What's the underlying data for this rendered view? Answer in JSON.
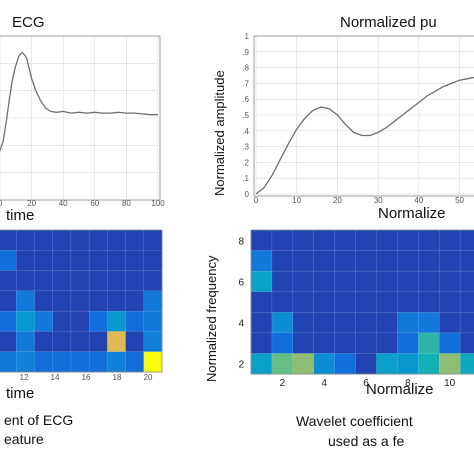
{
  "chart_data": [
    {
      "type": "line",
      "title": "ECG",
      "xlabel": "time",
      "ylabel": "",
      "xlim": [
        0,
        100
      ],
      "x_ticks": [
        "0",
        "20",
        "40",
        "60",
        "80",
        "100"
      ],
      "grid": true,
      "series": [
        {
          "x": [
            -5,
            0,
            2,
            4,
            6,
            8,
            10,
            12,
            14,
            16,
            17,
            18,
            20,
            23,
            26,
            29,
            32,
            36,
            40,
            45,
            50,
            55,
            60,
            65,
            70,
            75,
            80,
            85,
            90,
            95,
            100
          ],
          "y": [
            0.28,
            0.3,
            0.36,
            0.48,
            0.62,
            0.74,
            0.82,
            0.88,
            0.9,
            0.88,
            0.86,
            0.82,
            0.74,
            0.66,
            0.6,
            0.56,
            0.54,
            0.535,
            0.54,
            0.53,
            0.535,
            0.53,
            0.535,
            0.53,
            0.53,
            0.535,
            0.53,
            0.53,
            0.525,
            0.52,
            0.52
          ]
        }
      ]
    },
    {
      "type": "line",
      "title": "Normalized pu",
      "xlabel": "Normalize",
      "ylabel": "Normalized amplitude",
      "x_ticks": [
        "0",
        "10",
        "20",
        "30",
        "40",
        "50"
      ],
      "y_ticks": [
        "0",
        ".1",
        ".2",
        ".3",
        ".4",
        ".5",
        ".6",
        ".7",
        ".8",
        ".9",
        "1"
      ],
      "xlim": [
        0,
        56
      ],
      "ylim": [
        0,
        1
      ],
      "grid": true,
      "series": [
        {
          "x": [
            0,
            2,
            4,
            6,
            8,
            10,
            12,
            14,
            16,
            18,
            20,
            22,
            24,
            26,
            28,
            30,
            32,
            34,
            36,
            38,
            40,
            42,
            44,
            46,
            48,
            50,
            52,
            54,
            56
          ],
          "y": [
            0.0,
            0.04,
            0.12,
            0.22,
            0.32,
            0.41,
            0.48,
            0.53,
            0.55,
            0.54,
            0.5,
            0.44,
            0.39,
            0.37,
            0.37,
            0.39,
            0.42,
            0.46,
            0.5,
            0.54,
            0.58,
            0.62,
            0.65,
            0.68,
            0.7,
            0.72,
            0.73,
            0.74,
            0.74
          ]
        }
      ]
    },
    {
      "type": "heatmap",
      "xlabel": "time",
      "x_ticks": [
        "12",
        "14",
        "16",
        "18",
        "20"
      ],
      "caption_lines": [
        "ent of ECG",
        "eature"
      ],
      "values": [
        [
          0.1,
          0.1,
          0.1,
          0.1,
          0.1,
          0.1,
          0.1,
          0.1,
          0.1
        ],
        [
          0.3,
          0.1,
          0.1,
          0.1,
          0.1,
          0.1,
          0.1,
          0.1,
          0.1
        ],
        [
          0.1,
          0.1,
          0.1,
          0.1,
          0.1,
          0.1,
          0.1,
          0.1,
          0.1
        ],
        [
          0.1,
          0.35,
          0.1,
          0.1,
          0.1,
          0.1,
          0.1,
          0.1,
          0.35
        ],
        [
          0.3,
          0.5,
          0.35,
          0.1,
          0.1,
          0.3,
          0.5,
          0.3,
          0.35
        ],
        [
          0.1,
          0.35,
          0.1,
          0.1,
          0.1,
          0.1,
          0.95,
          0.1,
          0.4
        ],
        [
          0.35,
          0.4,
          0.3,
          0.3,
          0.3,
          0.3,
          0.4,
          0.3,
          1.0
        ]
      ]
    },
    {
      "type": "heatmap",
      "xlabel": "Normalize",
      "ylabel": "Normalized frequency",
      "x_ticks": [
        "2",
        "4",
        "6",
        "8",
        "10"
      ],
      "y_ticks": [
        "2",
        "4",
        "6",
        "8"
      ],
      "caption_lines": [
        "Wavelet coefficient",
        "used as a fe"
      ],
      "values": [
        [
          0.1,
          0.1,
          0.1,
          0.1,
          0.1,
          0.1,
          0.1,
          0.1,
          0.1,
          0.1,
          0.1
        ],
        [
          0.35,
          0.1,
          0.1,
          0.1,
          0.1,
          0.1,
          0.1,
          0.1,
          0.1,
          0.1,
          0.1
        ],
        [
          0.55,
          0.1,
          0.1,
          0.1,
          0.1,
          0.1,
          0.1,
          0.1,
          0.1,
          0.1,
          0.1
        ],
        [
          0.1,
          0.1,
          0.1,
          0.1,
          0.1,
          0.1,
          0.1,
          0.1,
          0.1,
          0.1,
          0.1
        ],
        [
          0.1,
          0.45,
          0.1,
          0.1,
          0.1,
          0.1,
          0.1,
          0.35,
          0.35,
          0.1,
          0.1
        ],
        [
          0.1,
          0.3,
          0.1,
          0.1,
          0.1,
          0.1,
          0.1,
          0.3,
          0.7,
          0.3,
          0.1
        ],
        [
          0.55,
          0.8,
          0.85,
          0.45,
          0.3,
          0.1,
          0.55,
          0.5,
          0.65,
          0.85,
          0.6
        ]
      ]
    }
  ]
}
